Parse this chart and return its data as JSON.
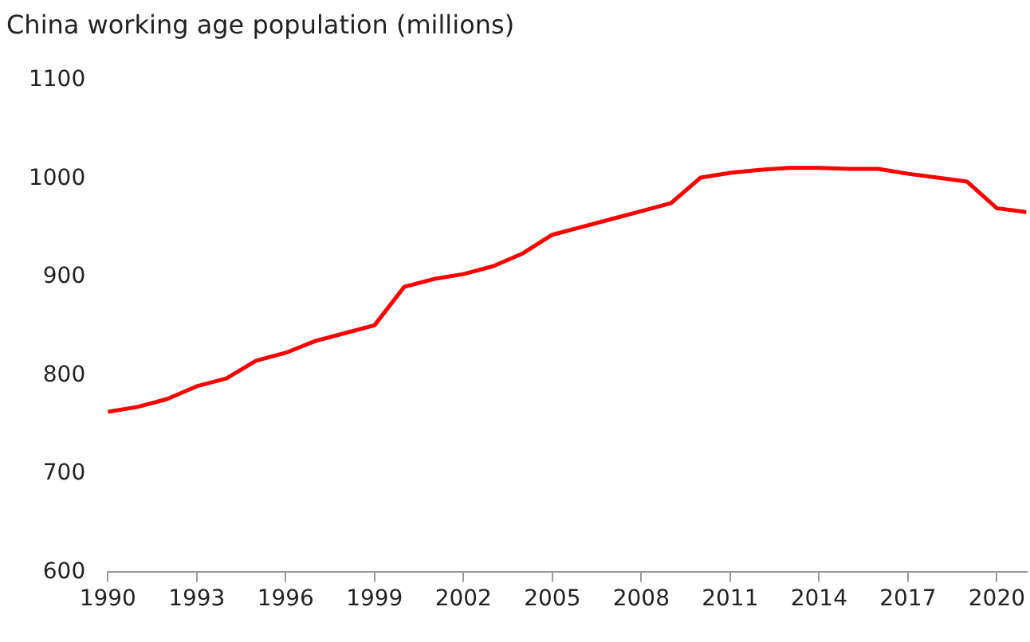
{
  "chart_data": {
    "type": "line",
    "title": "China working age population (millions)",
    "x": [
      1990,
      1991,
      1992,
      1993,
      1994,
      1995,
      1996,
      1997,
      1998,
      1999,
      2000,
      2001,
      2002,
      2003,
      2004,
      2005,
      2006,
      2007,
      2008,
      2009,
      2010,
      2011,
      2012,
      2013,
      2014,
      2015,
      2016,
      2017,
      2018,
      2019,
      2020,
      2021
    ],
    "series": [
      {
        "color": "#ff0000",
        "values": [
          763,
          768,
          776,
          789,
          797,
          815,
          823,
          835,
          843,
          851,
          890,
          898,
          903,
          911,
          924,
          943,
          951,
          959,
          967,
          975,
          1001,
          1006,
          1009,
          1011,
          1011,
          1010,
          1010,
          1005,
          1001,
          997,
          970,
          966
        ]
      }
    ],
    "xlim": [
      1990,
      2021
    ],
    "xticks": [
      1990,
      1993,
      1996,
      1999,
      2002,
      2005,
      2008,
      2011,
      2014,
      2017,
      2020
    ],
    "ylim": [
      600,
      1100
    ],
    "yticks": [
      600,
      700,
      800,
      900,
      1000,
      1100
    ],
    "grid": false,
    "legend": false,
    "marker": "none",
    "line_style": "solid"
  }
}
